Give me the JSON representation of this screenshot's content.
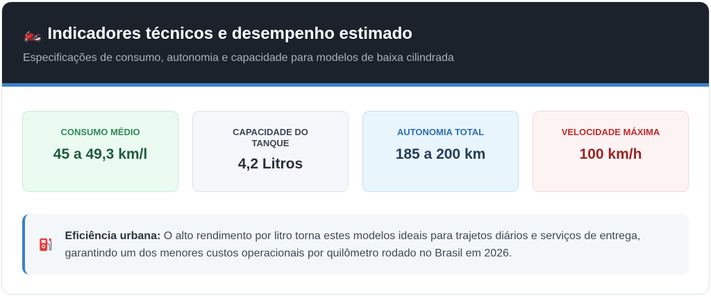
{
  "header": {
    "icon": "motorcycle-icon",
    "title": "Indicadores técnicos e desempenho estimado",
    "subtitle": "Especificações de consumo, autonomia e capacidade para modelos de baixa cilindrada"
  },
  "cards": [
    {
      "label": "CONSUMO MÉDIO",
      "value": "45 a 49,3 km/l"
    },
    {
      "label": "CAPACIDADE DO TANQUE",
      "value": "4,2 Litros"
    },
    {
      "label": "AUTONOMIA TOTAL",
      "value": "185 a 200 km"
    },
    {
      "label": "VELOCIDADE MÁXIMA",
      "value": "100 km/h"
    }
  ],
  "info": {
    "icon": "fuel-pump-icon",
    "title": "Eficiência urbana:",
    "text": " O alto rendimento por litro torna estes modelos ideais para trajetos diários e serviços de entrega, garantindo um dos menores custos operacionais por quilômetro rodado no Brasil em 2026."
  },
  "colors": {
    "header_bg": "#1b222c",
    "accent": "#3b82c9"
  }
}
